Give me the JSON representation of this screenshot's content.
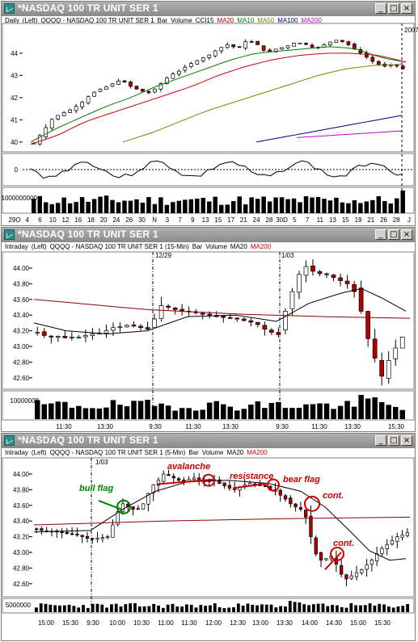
{
  "windows": [
    {
      "title": "*NASDAQ 100 TR UNIT SER 1",
      "legend": [
        {
          "text": "Daily",
          "color": "#000000"
        },
        {
          "text": "(Left)",
          "color": "#000000"
        },
        {
          "text": "QQQQ - NASDAQ 100 TR UNIT SER 1",
          "color": "#000000"
        },
        {
          "text": "Bar",
          "color": "#000000"
        },
        {
          "text": "Volume",
          "color": "#000000"
        },
        {
          "text": "CCI15",
          "color": "#000000"
        },
        {
          "text": "MA20",
          "color": "#cc0000"
        },
        {
          "text": "MA10",
          "color": "#008000"
        },
        {
          "text": "MA50",
          "color": "#808000"
        },
        {
          "text": "MA100",
          "color": "#000080"
        },
        {
          "text": "MA200",
          "color": "#cc00cc"
        }
      ],
      "corner_label": "2007",
      "price_ticks": [
        "44",
        "43",
        "42",
        "41",
        "40"
      ],
      "cci_ticks": [
        "0"
      ],
      "volume_ticks": [
        "1000000000"
      ],
      "x_ticks": [
        "29O",
        "4",
        "6",
        "10",
        "12",
        "16",
        "18",
        "20",
        "24",
        "26",
        "30",
        "N",
        "3",
        "7",
        "9",
        "13",
        "15",
        "17",
        "21",
        "24",
        "28",
        "30D",
        "5",
        "7",
        "11",
        "13",
        "15",
        "19",
        "21",
        "26",
        "28",
        "J"
      ]
    },
    {
      "title": "*NASDAQ 100 TR UNIT SER 1",
      "legend": [
        {
          "text": "Intraday",
          "color": "#000000"
        },
        {
          "text": "(Left)",
          "color": "#000000"
        },
        {
          "text": "QQQQ - NASDAQ 100 TR UNIT SER 1 (15-Min)",
          "color": "#000000"
        },
        {
          "text": "Bar",
          "color": "#000000"
        },
        {
          "text": "Volume",
          "color": "#000000"
        },
        {
          "text": "MA20",
          "color": "#000000"
        },
        {
          "text": "MA200",
          "color": "#cc0000"
        }
      ],
      "date_labels": [
        "12/29",
        "1/03"
      ],
      "price_ticks": [
        "44.00",
        "43.80",
        "43.60",
        "43.40",
        "43.20",
        "43.00",
        "42.80",
        "42.60"
      ],
      "volume_ticks": [
        "10000000"
      ],
      "x_ticks": [
        "11:30",
        "13:30",
        "9:30",
        "11:30",
        "13:30",
        "9:30",
        "11:30",
        "13:30",
        "15:30"
      ]
    },
    {
      "title": "*NASDAQ 100 TR UNIT SER 1",
      "legend": [
        {
          "text": "Intraday",
          "color": "#000000"
        },
        {
          "text": "(Left)",
          "color": "#000000"
        },
        {
          "text": "QQQQ - NASDAQ 100 TR UNIT SER 1 (5-Min)",
          "color": "#000000"
        },
        {
          "text": "Bar",
          "color": "#000000"
        },
        {
          "text": "Volume",
          "color": "#000000"
        },
        {
          "text": "MA20",
          "color": "#000000"
        },
        {
          "text": "MA200",
          "color": "#cc0000"
        }
      ],
      "date_labels": [
        "1/03"
      ],
      "price_ticks": [
        "44.00",
        "43.80",
        "43.60",
        "43.40",
        "43.20",
        "43.00",
        "42.80",
        "42.60"
      ],
      "volume_ticks": [
        "5000000"
      ],
      "x_ticks": [
        "15:00",
        "15:30",
        "9:30",
        "10:00",
        "10:30",
        "11:00",
        "11:30",
        "12:00",
        "12:30",
        "13:00",
        "13:30",
        "14:00",
        "14:30",
        "15:00",
        "15:30"
      ],
      "annotations": [
        {
          "text": "bull flag",
          "color": "#008000"
        },
        {
          "text": "avalanche",
          "color": "#cc0000"
        },
        {
          "text": "resistance",
          "color": "#cc0000"
        },
        {
          "text": "bear flag",
          "color": "#cc0000"
        },
        {
          "text": "cont.",
          "color": "#cc0000"
        },
        {
          "text": "cont.",
          "color": "#cc0000"
        }
      ]
    }
  ],
  "icons": {
    "minimize": "minimize-icon",
    "restore": "restore-icon",
    "close": "close-icon",
    "window": "chart-window-icon"
  }
}
